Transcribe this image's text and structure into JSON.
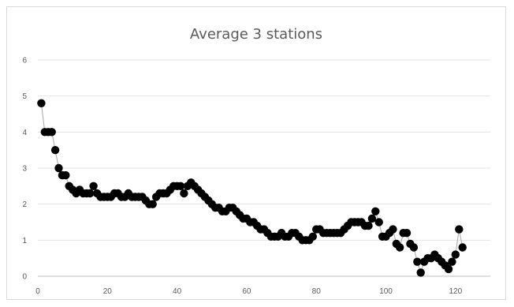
{
  "chart_data": {
    "type": "scatter",
    "title": "Average 3 stations",
    "xlabel": "",
    "ylabel": "",
    "xlim": [
      0,
      130
    ],
    "ylim": [
      0,
      6
    ],
    "x_ticks": [
      0,
      20,
      40,
      60,
      80,
      100,
      120
    ],
    "y_ticks": [
      0,
      1,
      2,
      3,
      4,
      5,
      6
    ],
    "grid": "horizontal",
    "marker_color": "#000000",
    "line_color": "#a6a6a6",
    "series": [
      {
        "x": [
          1,
          2,
          3,
          4,
          5,
          6,
          7,
          8,
          9,
          10,
          11,
          12,
          13,
          14,
          15,
          16,
          17,
          18,
          19,
          20,
          21,
          22,
          23,
          24,
          25,
          26,
          27,
          28,
          29,
          30,
          31,
          32,
          33,
          34,
          35,
          36,
          37,
          38,
          39,
          40,
          41,
          42,
          43,
          44,
          45,
          46,
          47,
          48,
          49,
          50,
          51,
          52,
          53,
          54,
          55,
          56,
          57,
          58,
          59,
          60,
          61,
          62,
          63,
          64,
          65,
          66,
          67,
          68,
          69,
          70,
          71,
          72,
          73,
          74,
          75,
          76,
          77,
          78,
          79,
          80,
          81,
          82,
          83,
          84,
          85,
          86,
          87,
          88,
          89,
          90,
          91,
          92,
          93,
          94,
          95,
          96,
          97,
          98,
          99,
          100,
          101,
          102,
          103,
          104,
          105,
          106,
          107,
          108,
          109,
          110,
          111,
          112,
          113,
          114,
          115,
          116,
          117,
          118,
          119,
          120,
          121,
          122
        ],
        "y": [
          4.8,
          4.0,
          4.0,
          4.0,
          3.5,
          3.0,
          2.8,
          2.8,
          2.5,
          2.4,
          2.3,
          2.4,
          2.3,
          2.3,
          2.3,
          2.5,
          2.3,
          2.2,
          2.2,
          2.2,
          2.2,
          2.3,
          2.3,
          2.2,
          2.2,
          2.3,
          2.2,
          2.2,
          2.2,
          2.2,
          2.1,
          2.0,
          2.0,
          2.2,
          2.3,
          2.3,
          2.3,
          2.4,
          2.5,
          2.5,
          2.5,
          2.3,
          2.5,
          2.6,
          2.5,
          2.4,
          2.3,
          2.2,
          2.1,
          2.0,
          1.9,
          1.9,
          1.8,
          1.8,
          1.9,
          1.9,
          1.8,
          1.7,
          1.6,
          1.6,
          1.5,
          1.5,
          1.4,
          1.3,
          1.3,
          1.2,
          1.1,
          1.1,
          1.1,
          1.2,
          1.1,
          1.1,
          1.2,
          1.2,
          1.1,
          1.0,
          1.0,
          1.0,
          1.1,
          1.3,
          1.3,
          1.2,
          1.2,
          1.2,
          1.2,
          1.2,
          1.2,
          1.3,
          1.4,
          1.5,
          1.5,
          1.5,
          1.5,
          1.4,
          1.4,
          1.6,
          1.8,
          1.5,
          1.1,
          1.1,
          1.2,
          1.3,
          0.9,
          0.8,
          1.2,
          1.2,
          0.9,
          0.8,
          0.4,
          0.1,
          0.4,
          0.5,
          0.5,
          0.6,
          0.5,
          0.4,
          0.3,
          0.2,
          0.4,
          0.6,
          1.3,
          0.8
        ]
      }
    ]
  }
}
